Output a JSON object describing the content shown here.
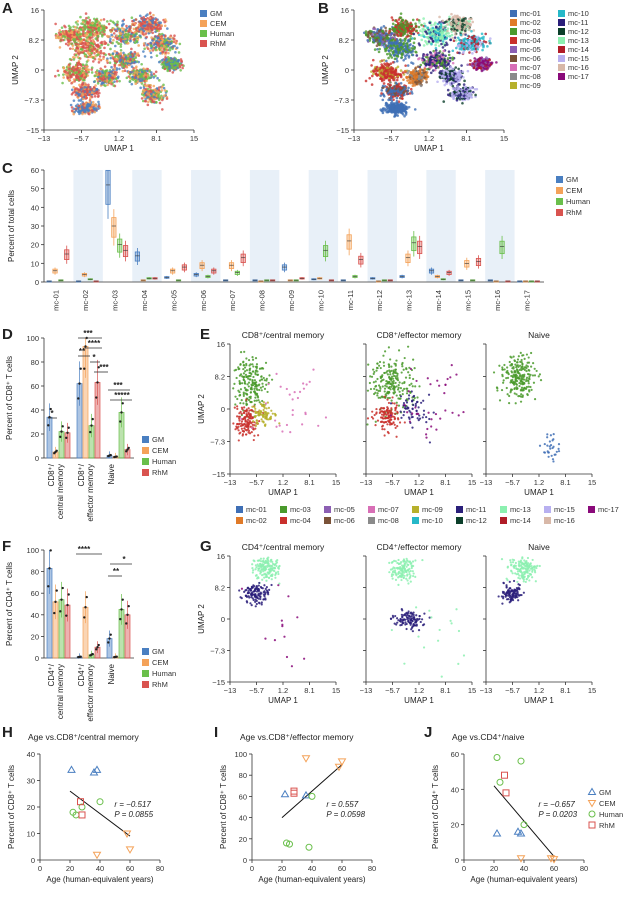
{
  "panel_letters": [
    "A",
    "B",
    "C",
    "D",
    "E",
    "F",
    "G",
    "H",
    "I",
    "J"
  ],
  "colors": {
    "GM": "#4a7fc1",
    "CEM": "#f4a259",
    "Human": "#6abf4b",
    "RhM": "#d9534f",
    "clusters": [
      "#3f6fb5",
      "#e07a28",
      "#4a9a2c",
      "#c9302c",
      "#8c5fb3",
      "#7a5238",
      "#d86fb6",
      "#8a8a8a",
      "#b6b02c",
      "#26b8c8",
      "#2a1f7a",
      "#0b3f2a",
      "#8cf0b0",
      "#b01c28",
      "#b8b0f0",
      "#d8b8a8",
      "#8a0a7a"
    ]
  },
  "cluster_names": [
    "mc-01",
    "mc-02",
    "mc-03",
    "mc-04",
    "mc-05",
    "mc-06",
    "mc-07",
    "mc-08",
    "mc-09",
    "mc-10",
    "mc-11",
    "mc-12",
    "mc-13",
    "mc-14",
    "mc-15",
    "mc-16",
    "mc-17"
  ],
  "groups": [
    "GM",
    "CEM",
    "Human",
    "RhM"
  ],
  "umap_axes": {
    "xlabel": "UMAP 1",
    "ylabel": "UMAP 2",
    "xticks": [
      "−13",
      "−5.7",
      "1.2",
      "8.1",
      "15"
    ],
    "yticks": [
      "16",
      "8.2",
      "0",
      "−7.3",
      "−15"
    ]
  },
  "E_titles": [
    "CD8⁺/central memory",
    "CD8⁺/effector memory",
    "Naive"
  ],
  "G_titles": [
    "CD4⁺/central memory",
    "CD4⁺/effector memory",
    "Naive"
  ],
  "chart_data": [
    {
      "panel": "C",
      "type": "box",
      "ylabel": "Percent of total cells",
      "ylim": [
        0,
        60
      ],
      "yticks": [
        "0",
        "10",
        "20",
        "30",
        "40",
        "50",
        "60"
      ],
      "categories": [
        "mc-01",
        "mc-02",
        "mc-03",
        "mc-04",
        "mc-05",
        "mc-06",
        "mc-07",
        "mc-08",
        "mc-09",
        "mc-10",
        "mc-11",
        "mc-12",
        "mc-13",
        "mc-14",
        "mc-15",
        "mc-16",
        "mc-17"
      ],
      "series": [
        {
          "name": "GM",
          "values": [
            0.5,
            0.5,
            52,
            14,
            2.5,
            4,
            1,
            1,
            8,
            1.5,
            1,
            2,
            3,
            6,
            1,
            1,
            0.5
          ]
        },
        {
          "name": "CEM",
          "values": [
            6,
            4,
            30,
            1,
            6,
            9,
            9,
            0.5,
            1,
            2,
            22,
            0.5,
            13,
            3,
            10,
            0.5,
            0.5
          ]
        },
        {
          "name": "Human",
          "values": [
            1,
            1.5,
            20,
            2,
            1,
            3,
            5,
            1,
            1,
            17,
            3,
            1,
            21,
            1.5,
            1,
            19,
            0.5
          ]
        },
        {
          "name": "RhM",
          "values": [
            15,
            0.5,
            17,
            2,
            8,
            6,
            13,
            1,
            2,
            1,
            12,
            1,
            19,
            5,
            11,
            0.5,
            0.5
          ]
        }
      ]
    },
    {
      "panel": "D",
      "type": "bar",
      "ylabel": "Percent of CD8⁺ T cells",
      "ylim": [
        0,
        100
      ],
      "yticks": [
        "0",
        "20",
        "40",
        "60",
        "80",
        "100"
      ],
      "categories": [
        "CD8⁺/\ncentral memory",
        "CD8⁺/\neffector memory",
        "Naive"
      ],
      "category_lines": [
        [
          "CD8⁺/",
          "central memory"
        ],
        [
          "CD8⁺/",
          "effector memory"
        ],
        [
          "Naive"
        ]
      ],
      "series": [
        {
          "name": "GM",
          "values": [
            34,
            62,
            2
          ]
        },
        {
          "name": "CEM",
          "values": [
            5,
            93,
            1
          ]
        },
        {
          "name": "Human",
          "values": [
            22,
            27,
            38
          ]
        },
        {
          "name": "RhM",
          "values": [
            21,
            63,
            7
          ]
        }
      ],
      "annotations": [
        "*",
        "***",
        "**",
        "****",
        "*",
        "***",
        "***",
        "*****"
      ]
    },
    {
      "panel": "F",
      "type": "bar",
      "ylabel": "Percent of CD4⁺ T cells",
      "ylim": [
        0,
        100
      ],
      "yticks": [
        "0",
        "20",
        "40",
        "60",
        "80",
        "100"
      ],
      "category_lines": [
        [
          "CD4⁺/",
          "central memory"
        ],
        [
          "CD4⁺/",
          "effector memory"
        ],
        [
          "Naive"
        ]
      ],
      "series": [
        {
          "name": "GM",
          "values": [
            83,
            1,
            18
          ]
        },
        {
          "name": "CEM",
          "values": [
            52,
            47,
            1
          ]
        },
        {
          "name": "Human",
          "values": [
            54,
            3,
            45
          ]
        },
        {
          "name": "RhM",
          "values": [
            49,
            10,
            40
          ]
        }
      ],
      "annotations": [
        "****",
        "**",
        "*"
      ]
    },
    {
      "panel": "H",
      "type": "scatter",
      "title": "Age vs.CD8⁺/central memory",
      "xlabel": "Age (human-equivalent years)",
      "ylabel": "Percent of CD8⁺ T cells",
      "xlim": [
        0,
        80
      ],
      "ylim": [
        0,
        40
      ],
      "xticks": [
        "0",
        "20",
        "40",
        "60",
        "80"
      ],
      "yticks": [
        "0",
        "10",
        "20",
        "30",
        "40"
      ],
      "series": [
        {
          "name": "GM",
          "x": [
            21,
            36,
            38
          ],
          "y": [
            34,
            33,
            34
          ]
        },
        {
          "name": "CEM",
          "x": [
            38,
            58,
            60
          ],
          "y": [
            2,
            10,
            4
          ]
        },
        {
          "name": "Human",
          "x": [
            22,
            24,
            28,
            40
          ],
          "y": [
            18,
            17,
            20,
            22
          ]
        },
        {
          "name": "RhM",
          "x": [
            27,
            28
          ],
          "y": [
            22,
            17
          ]
        }
      ],
      "fit": {
        "x": [
          20,
          60
        ],
        "y": [
          26,
          9
        ]
      },
      "stats": {
        "r": "r = −0.517",
        "p": "P = 0.0855"
      }
    },
    {
      "panel": "I",
      "type": "scatter",
      "title": "Age vs.CD8⁺/effector memory",
      "xlabel": "Age (human-equivalent years)",
      "ylabel": "Percent of CD8⁺ T cells",
      "xlim": [
        0,
        80
      ],
      "ylim": [
        0,
        100
      ],
      "xticks": [
        "0",
        "20",
        "40",
        "60",
        "80"
      ],
      "yticks": [
        "0",
        "20",
        "40",
        "60",
        "80",
        "100"
      ],
      "series": [
        {
          "name": "GM",
          "x": [
            22,
            36
          ],
          "y": [
            62,
            61
          ]
        },
        {
          "name": "CEM",
          "x": [
            36,
            58,
            60
          ],
          "y": [
            96,
            88,
            93
          ]
        },
        {
          "name": "Human",
          "x": [
            23,
            25,
            38,
            40
          ],
          "y": [
            16,
            15,
            12,
            60
          ]
        },
        {
          "name": "RhM",
          "x": [
            28,
            28
          ],
          "y": [
            63,
            65
          ]
        }
      ],
      "fit": {
        "x": [
          20,
          60
        ],
        "y": [
          40,
          90
        ]
      },
      "stats": {
        "r": "r = 0.557",
        "p": "P = 0.0598"
      }
    },
    {
      "panel": "J",
      "type": "scatter",
      "title": "Age vs.CD4⁺/naive",
      "xlabel": "Age (human-equivalent years)",
      "ylabel": "Percent of CD4⁺ T cells",
      "xlim": [
        0,
        80
      ],
      "ylim": [
        0,
        60
      ],
      "xticks": [
        "0",
        "20",
        "40",
        "60",
        "80"
      ],
      "yticks": [
        "0",
        "20",
        "40",
        "60"
      ],
      "series": [
        {
          "name": "GM",
          "x": [
            22,
            36,
            38
          ],
          "y": [
            15,
            16,
            15
          ]
        },
        {
          "name": "CEM",
          "x": [
            38,
            58,
            60
          ],
          "y": [
            1,
            1,
            0.5
          ]
        },
        {
          "name": "Human",
          "x": [
            22,
            24,
            38,
            40
          ],
          "y": [
            58,
            44,
            56,
            20
          ]
        },
        {
          "name": "RhM",
          "x": [
            27,
            28
          ],
          "y": [
            48,
            38
          ]
        }
      ],
      "fit": {
        "x": [
          20,
          60
        ],
        "y": [
          42,
          2
        ]
      },
      "stats": {
        "r": "r = −0.657",
        "p": "P = 0.0203"
      }
    }
  ]
}
